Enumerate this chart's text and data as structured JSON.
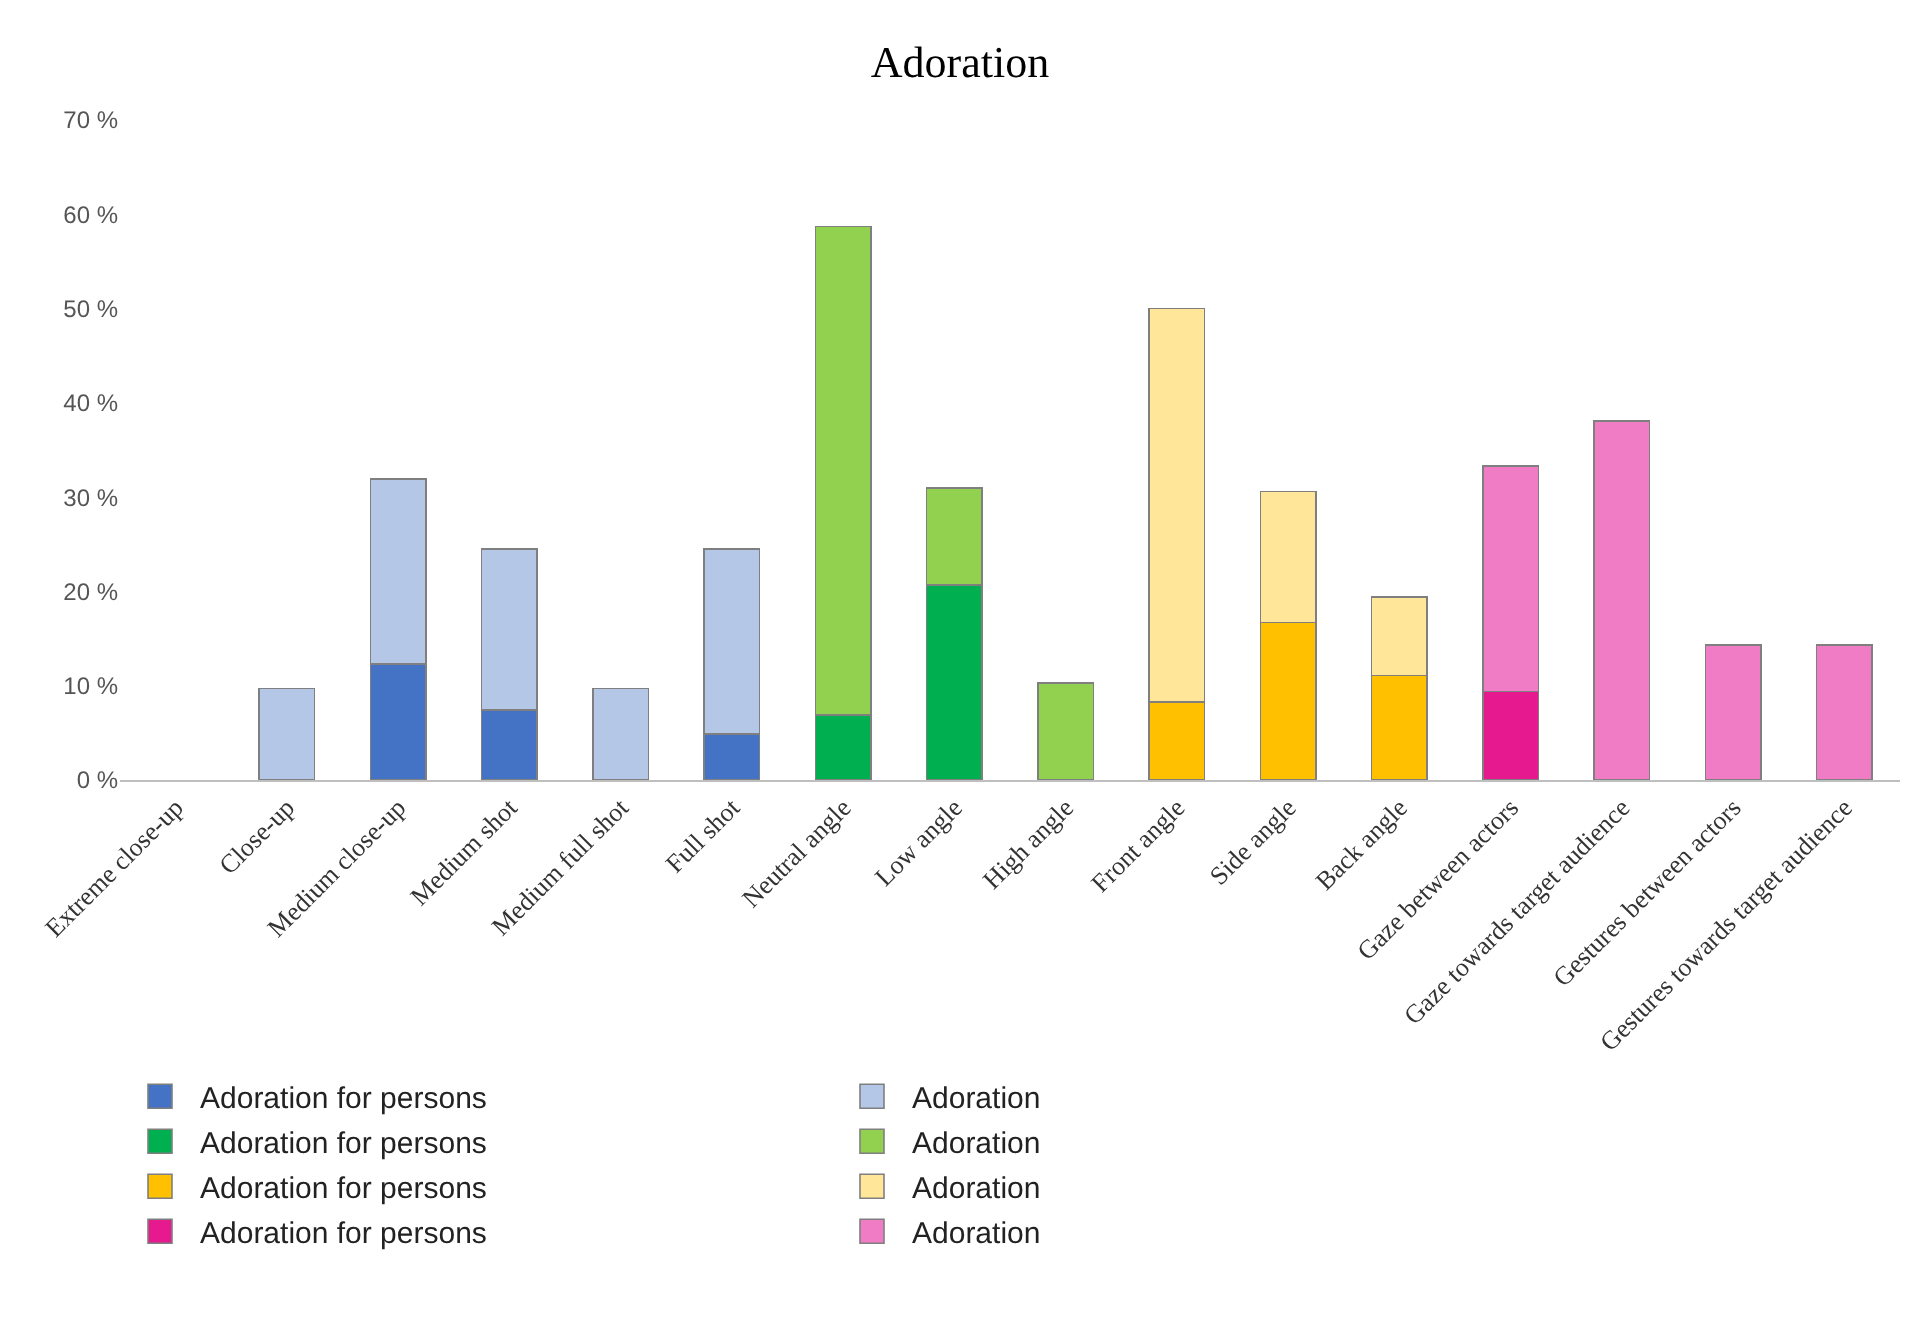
{
  "chart_data": {
    "type": "bar",
    "title": "Adoration",
    "stacked": true,
    "categories": [
      "Extreme close-up",
      "Close-up",
      "Medium close-up",
      "Medium shot",
      "Medium full shot",
      "Full shot",
      "Neutral angle",
      "Low angle",
      "High angle",
      "Front angle",
      "Side angle",
      "Back angle",
      "Gaze between actors",
      "Gaze towards target audience",
      "Gestures between actors",
      "Gestures towards target audience"
    ],
    "series": [
      {
        "name": "Adoration for persons",
        "color": "#4472c4",
        "values": [
          null,
          null,
          12.3,
          7.4,
          null,
          4.9,
          null,
          null,
          null,
          null,
          null,
          null,
          null,
          null,
          null,
          null
        ]
      },
      {
        "name": "Adoration",
        "color": "#b4c7e7",
        "values": [
          null,
          9.7,
          19.6,
          17.1,
          9.7,
          19.6,
          null,
          null,
          null,
          null,
          null,
          null,
          null,
          null,
          null,
          null
        ]
      },
      {
        "name": "Adoration for persons",
        "color": "#00b050",
        "values": [
          null,
          null,
          null,
          null,
          null,
          null,
          6.9,
          20.7,
          null,
          null,
          null,
          null,
          null,
          null,
          null,
          null
        ]
      },
      {
        "name": "Adoration",
        "color": "#92d050",
        "values": [
          null,
          null,
          null,
          null,
          null,
          null,
          51.8,
          10.3,
          10.3,
          null,
          null,
          null,
          null,
          null,
          null,
          null
        ]
      },
      {
        "name": "Adoration for persons",
        "color": "#ffc000",
        "values": [
          null,
          null,
          null,
          null,
          null,
          null,
          null,
          null,
          null,
          8.3,
          16.7,
          11.1,
          null,
          null,
          null,
          null
        ]
      },
      {
        "name": "Adoration",
        "color": "#ffe699",
        "values": [
          null,
          null,
          null,
          null,
          null,
          null,
          null,
          null,
          null,
          41.7,
          13.9,
          8.3,
          null,
          null,
          null,
          null
        ]
      },
      {
        "name": "Adoration for persons",
        "color": "#e7198f",
        "values": [
          null,
          null,
          null,
          null,
          null,
          null,
          null,
          null,
          null,
          null,
          null,
          null,
          9.4,
          null,
          null,
          null
        ]
      },
      {
        "name": "Adoration",
        "color": "#f07cc6",
        "values": [
          null,
          null,
          null,
          null,
          null,
          null,
          null,
          null,
          null,
          null,
          null,
          null,
          23.9,
          38.1,
          14.3,
          14.3
        ]
      }
    ],
    "ylim": [
      0,
      70
    ],
    "yticks": [
      {
        "value": 0,
        "label": "0 %"
      },
      {
        "value": 10,
        "label": "10 %"
      },
      {
        "value": 20,
        "label": "20 %"
      },
      {
        "value": 30,
        "label": "30 %"
      },
      {
        "value": 40,
        "label": "40 %"
      },
      {
        "value": 50,
        "label": "50 %"
      },
      {
        "value": 60,
        "label": "60 %"
      },
      {
        "value": 70,
        "label": "70 %"
      }
    ],
    "legend": "bottom left"
  }
}
